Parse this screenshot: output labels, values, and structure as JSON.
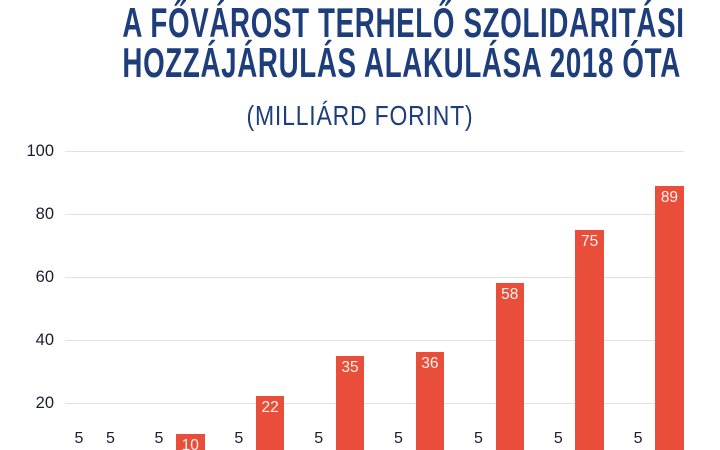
{
  "title": {
    "line1": "A FŐVÁROST TERHELŐ SZOLIDARITÁSI",
    "line2": "HOZZÁJÁRULÁS ALAKULÁSA 2018 ÓTA",
    "subtitle": "(MILLIÁRD FORINT)"
  },
  "colors": {
    "title_navy": "#1d3e7a",
    "bar_red": "#e94e3a",
    "bar_label_cream": "#fbf4ec",
    "axis_text": "#1a1d2f",
    "gridline": "#e2e2e2",
    "background": "#ffffff"
  },
  "chart_data": {
    "type": "bar",
    "title": "A FŐVÁROST TERHELŐ SZOLIDARITÁSI HOZZÁJÁRULÁS ALAKULÁSA 2018 ÓTA",
    "subtitle": "(MILLIÁRD FORINT)",
    "xlabel": "",
    "ylabel": "",
    "ylim": [
      0,
      100
    ],
    "yticks": [
      20,
      40,
      60,
      80,
      100
    ],
    "grid": true,
    "legend": false,
    "groups": [
      {
        "bars": [
          5,
          5
        ]
      },
      {
        "bars": [
          5,
          10
        ]
      },
      {
        "bars": [
          5,
          22
        ]
      },
      {
        "bars": [
          5,
          35
        ]
      },
      {
        "bars": [
          5,
          36
        ]
      },
      {
        "bars": [
          5,
          58
        ]
      },
      {
        "bars": [
          5,
          75
        ]
      },
      {
        "bars": [
          5,
          89
        ]
      }
    ],
    "visible_bar_labels": [
      "5",
      "5",
      "5",
      "10",
      "5",
      "22",
      "5",
      "35",
      "5",
      "36",
      "5",
      "58",
      "5",
      "75",
      "5",
      "89"
    ]
  }
}
